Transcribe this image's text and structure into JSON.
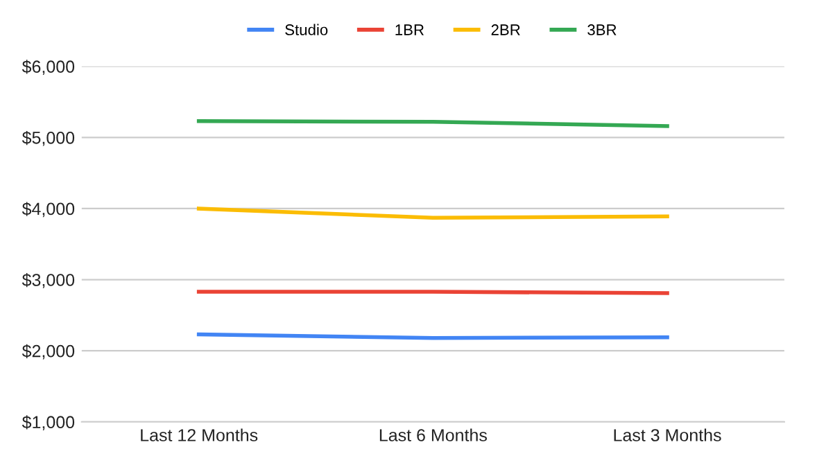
{
  "chart_data": {
    "type": "line",
    "categories": [
      "Last 12 Months",
      "Last 6 Months",
      "Last 3 Months"
    ],
    "series": [
      {
        "name": "Studio",
        "color": "#4285f4",
        "values": [
          2230,
          2180,
          2190
        ]
      },
      {
        "name": "1BR",
        "color": "#ea4335",
        "values": [
          2830,
          2830,
          2810
        ]
      },
      {
        "name": "2BR",
        "color": "#fbbc04",
        "values": [
          4000,
          3870,
          3890
        ]
      },
      {
        "name": "3BR",
        "color": "#34a853",
        "values": [
          5230,
          5220,
          5160
        ]
      }
    ],
    "ylim": [
      1000,
      6000
    ],
    "yticks": [
      {
        "value": 1000,
        "label": "$1,000"
      },
      {
        "value": 2000,
        "label": "$2,000"
      },
      {
        "value": 3000,
        "label": "$3,000"
      },
      {
        "value": 4000,
        "label": "$4,000"
      },
      {
        "value": 5000,
        "label": "$5,000"
      },
      {
        "value": 6000,
        "label": "$6,000"
      }
    ],
    "grid": "y",
    "legend": "top",
    "marker": "none",
    "line_style": "solid"
  }
}
